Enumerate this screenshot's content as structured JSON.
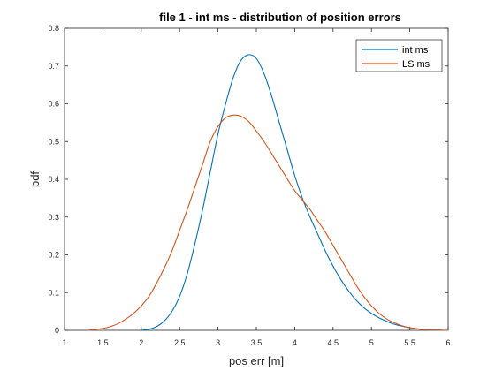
{
  "chart_data": {
    "type": "line",
    "title": "file 1 - int ms - distribution of position errors",
    "xlabel": "pos err [m]",
    "ylabel": "pdf",
    "xlim": [
      1,
      6
    ],
    "ylim": [
      0,
      0.8
    ],
    "xticks": [
      1,
      1.5,
      2,
      2.5,
      3,
      3.5,
      4,
      4.5,
      5,
      5.5,
      6
    ],
    "xtick_labels": [
      "1",
      "1.5",
      "2",
      "2.5",
      "3",
      "3.5",
      "4",
      "4.5",
      "5",
      "5.5",
      "6"
    ],
    "yticks": [
      0,
      0.1,
      0.2,
      0.3,
      0.4,
      0.5,
      0.6,
      0.7,
      0.8
    ],
    "ytick_labels": [
      "0",
      "0.1",
      "0.2",
      "0.3",
      "0.4",
      "0.5",
      "0.6",
      "0.7",
      "0.8"
    ],
    "grid": false,
    "legend_position": "top-right",
    "series": [
      {
        "name": "int ms",
        "color": "#0072bd",
        "x": [
          2.0,
          2.1,
          2.2,
          2.3,
          2.4,
          2.5,
          2.6,
          2.7,
          2.8,
          2.9,
          3.0,
          3.1,
          3.2,
          3.3,
          3.4,
          3.5,
          3.6,
          3.7,
          3.8,
          3.9,
          4.0,
          4.1,
          4.2,
          4.3,
          4.4,
          4.5,
          4.6,
          4.7,
          4.8,
          4.9,
          5.0,
          5.1,
          5.2,
          5.3,
          5.4,
          5.5,
          5.6,
          5.7,
          5.8,
          5.9,
          6.0
        ],
        "y": [
          0.0,
          0.003,
          0.01,
          0.025,
          0.05,
          0.09,
          0.15,
          0.23,
          0.32,
          0.42,
          0.52,
          0.6,
          0.67,
          0.715,
          0.73,
          0.72,
          0.68,
          0.62,
          0.55,
          0.48,
          0.41,
          0.35,
          0.3,
          0.255,
          0.21,
          0.17,
          0.135,
          0.105,
          0.08,
          0.06,
          0.045,
          0.033,
          0.024,
          0.016,
          0.011,
          0.007,
          0.004,
          0.002,
          0.001,
          0.0005,
          0.0
        ]
      },
      {
        "name": "LS ms",
        "color": "#d95319",
        "x": [
          1.3,
          1.5,
          1.6,
          1.7,
          1.8,
          1.9,
          2.0,
          2.1,
          2.2,
          2.3,
          2.4,
          2.5,
          2.6,
          2.7,
          2.8,
          2.9,
          3.0,
          3.1,
          3.2,
          3.3,
          3.4,
          3.5,
          3.6,
          3.7,
          3.8,
          3.9,
          4.0,
          4.1,
          4.2,
          4.3,
          4.4,
          4.5,
          4.6,
          4.7,
          4.8,
          4.9,
          5.0,
          5.1,
          5.2,
          5.3,
          5.4,
          5.5,
          5.6,
          5.7,
          5.8,
          5.9,
          6.0
        ],
        "y": [
          0.0,
          0.005,
          0.01,
          0.018,
          0.03,
          0.045,
          0.065,
          0.09,
          0.125,
          0.165,
          0.21,
          0.265,
          0.32,
          0.38,
          0.44,
          0.5,
          0.54,
          0.563,
          0.57,
          0.567,
          0.553,
          0.528,
          0.5,
          0.468,
          0.435,
          0.402,
          0.37,
          0.345,
          0.32,
          0.29,
          0.26,
          0.225,
          0.19,
          0.155,
          0.12,
          0.09,
          0.065,
          0.045,
          0.03,
          0.02,
          0.012,
          0.007,
          0.004,
          0.002,
          0.001,
          0.0005,
          0.0
        ]
      }
    ]
  }
}
